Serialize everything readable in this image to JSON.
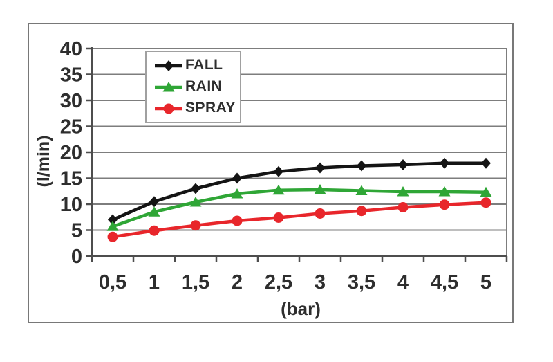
{
  "figure": {
    "kind": "scanned line chart figure",
    "frame_border_color": "#787878",
    "background_color": "#ffffff"
  },
  "colors": {
    "grid_line": "#7d7d7d",
    "axis_line": "#4d4d4d",
    "tick_label_text": "#2e2e2e",
    "legend_border": "#a0a0a0",
    "legend_background": "#ffffff",
    "series_fall": "#141414",
    "series_rain": "#2fa636",
    "series_spray": "#e8262b"
  },
  "chart_data": {
    "type": "line",
    "title": "",
    "xlabel": "(bar)",
    "ylabel": "(l/min)",
    "x": [
      0.5,
      1,
      1.5,
      2,
      2.5,
      3,
      3.5,
      4,
      4.5,
      5
    ],
    "x_tick_labels": [
      "0,5",
      "1",
      "1,5",
      "2",
      "2,5",
      "3",
      "3,5",
      "4",
      "4,5",
      "5"
    ],
    "y_ticks": [
      0,
      5,
      10,
      15,
      20,
      25,
      30,
      35,
      40
    ],
    "y_tick_labels": [
      "0",
      "5",
      "10",
      "15",
      "20",
      "25",
      "30",
      "35",
      "40"
    ],
    "ylim": [
      0,
      40
    ],
    "grid": true,
    "legend_position": "upper-left-inside",
    "series": [
      {
        "name": "FALL",
        "color": "#141414",
        "marker": "diamond",
        "values": [
          7.0,
          10.5,
          13.0,
          15.0,
          16.3,
          17.0,
          17.4,
          17.6,
          17.9,
          17.9
        ]
      },
      {
        "name": "RAIN",
        "color": "#2fa636",
        "marker": "triangle",
        "values": [
          5.7,
          8.5,
          10.4,
          12.0,
          12.7,
          12.8,
          12.6,
          12.4,
          12.4,
          12.3
        ]
      },
      {
        "name": "SPRAY",
        "color": "#e8262b",
        "marker": "circle",
        "values": [
          3.7,
          4.9,
          5.9,
          6.8,
          7.4,
          8.2,
          8.7,
          9.4,
          9.9,
          10.3
        ]
      }
    ]
  }
}
